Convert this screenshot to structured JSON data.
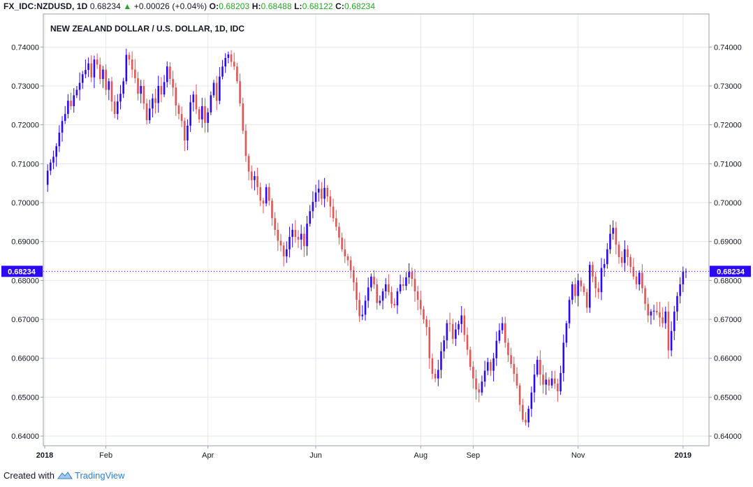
{
  "header": {
    "symbol": "FX_IDC:NZDUSD, 1D",
    "last": "0.68234",
    "arrow": "▲",
    "change": "+0.00026 (+0.04%)",
    "o_label": "O:",
    "o_value": "0.68203",
    "h_label": "H:",
    "h_value": "0.68488",
    "l_label": "L:",
    "l_value": "0.68122",
    "c_label": "C:",
    "c_value": "0.68234"
  },
  "footer": {
    "created_with": "Created with",
    "brand": "TradingView"
  },
  "colors": {
    "up": "#2b09f2",
    "down": "#e05555",
    "grid": "#e4e8ee",
    "price_tag": "#2b09f2"
  },
  "chart_data": {
    "type": "candlestick",
    "title": "NEW ZEALAND DOLLAR / U.S. DOLLAR, 1D, IDC",
    "ylim": [
      0.6375,
      0.7485
    ],
    "xlim": [
      0,
      220
    ],
    "y_ticks": [
      "0.74000",
      "0.73000",
      "0.72000",
      "0.71000",
      "0.70000",
      "0.69000",
      "0.68000",
      "0.67000",
      "0.66000",
      "0.65000",
      "0.64000"
    ],
    "x_ticks": [
      {
        "label": "2018",
        "t": 0
      },
      {
        "label": "Feb",
        "t": 21
      },
      {
        "label": "Apr",
        "t": 56
      },
      {
        "label": "Jun",
        "t": 93
      },
      {
        "label": "Aug",
        "t": 129
      },
      {
        "label": "Sep",
        "t": 147
      },
      {
        "label": "Nov",
        "t": 183
      },
      {
        "label": "2019",
        "t": 219
      }
    ],
    "last_price": "0.68234",
    "close": [
      0.7046,
      0.7082,
      0.7103,
      0.7118,
      0.7145,
      0.718,
      0.721,
      0.7228,
      0.7262,
      0.7248,
      0.7276,
      0.729,
      0.7308,
      0.733,
      0.7341,
      0.7358,
      0.7322,
      0.7368,
      0.7355,
      0.7318,
      0.7342,
      0.729,
      0.7312,
      0.726,
      0.7228,
      0.726,
      0.728,
      0.7312,
      0.738,
      0.7368,
      0.7342,
      0.732,
      0.728,
      0.73,
      0.7255,
      0.7212,
      0.7242,
      0.7268,
      0.7256,
      0.73,
      0.7278,
      0.731,
      0.735,
      0.7318,
      0.7296,
      0.725,
      0.7228,
      0.721,
      0.716,
      0.7198,
      0.7258,
      0.7278,
      0.724,
      0.7214,
      0.7248,
      0.7205,
      0.7232,
      0.7276,
      0.7308,
      0.7262,
      0.7324,
      0.735,
      0.7372,
      0.7381,
      0.7362,
      0.735,
      0.7312,
      0.7255,
      0.7185,
      0.712,
      0.708,
      0.7058,
      0.7068,
      0.704,
      0.7005,
      0.6998,
      0.704,
      0.7005,
      0.696,
      0.693,
      0.6902,
      0.689,
      0.6862,
      0.688,
      0.6912,
      0.693,
      0.6912,
      0.6905,
      0.692,
      0.6888,
      0.6946,
      0.6978,
      0.7002,
      0.7026,
      0.7036,
      0.701,
      0.7038,
      0.7016,
      0.699,
      0.696,
      0.6938,
      0.691,
      0.688,
      0.6862,
      0.6852,
      0.6826,
      0.6795,
      0.675,
      0.6708,
      0.6712,
      0.6748,
      0.6782,
      0.681,
      0.679,
      0.6742,
      0.6748,
      0.6772,
      0.679,
      0.677,
      0.674,
      0.6736,
      0.6772,
      0.679,
      0.6786,
      0.6808,
      0.6822,
      0.6804,
      0.6772,
      0.675,
      0.6726,
      0.67,
      0.668,
      0.66,
      0.656,
      0.6548,
      0.657,
      0.6618,
      0.6646,
      0.669,
      0.6688,
      0.665,
      0.6674,
      0.6688,
      0.671,
      0.666,
      0.6622,
      0.6578,
      0.6548,
      0.652,
      0.6512,
      0.654,
      0.6568,
      0.659,
      0.6568,
      0.66,
      0.6645,
      0.6672,
      0.669,
      0.664,
      0.6608,
      0.6585,
      0.656,
      0.653,
      0.648,
      0.6442,
      0.6435,
      0.647,
      0.6512,
      0.6558,
      0.6596,
      0.6558,
      0.6532,
      0.6545,
      0.653,
      0.6548,
      0.6535,
      0.6515,
      0.6562,
      0.664,
      0.669,
      0.675,
      0.679,
      0.676,
      0.68,
      0.6785,
      0.677,
      0.673,
      0.684,
      0.681,
      0.678,
      0.677,
      0.6832,
      0.6842,
      0.688,
      0.692,
      0.6935,
      0.6892,
      0.686,
      0.6845,
      0.688,
      0.686,
      0.6835,
      0.681,
      0.679,
      0.682,
      0.678,
      0.674,
      0.671,
      0.672,
      0.6722,
      0.6718,
      0.6705,
      0.669,
      0.672,
      0.662,
      0.667,
      0.672,
      0.676,
      0.679,
      0.6822,
      0.6823
    ]
  }
}
